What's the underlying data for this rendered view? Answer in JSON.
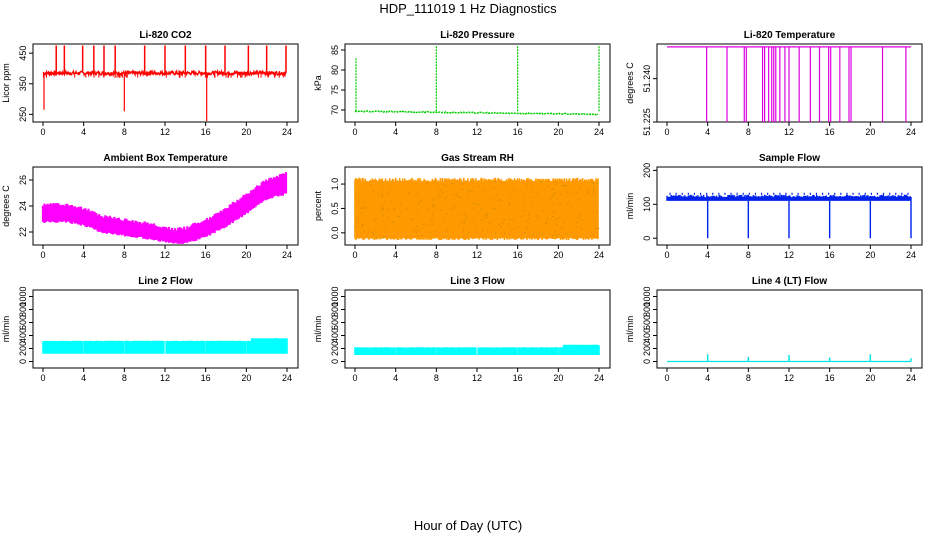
{
  "header": {
    "title": "HDP_111019  1 Hz Diagnostics"
  },
  "footer": {
    "xlabel": "Hour of Day (UTC)"
  },
  "colors": {
    "co2": "#ff0000",
    "pressure": "#00cc00",
    "temperature": "#dd00dd",
    "ambient": "#ff00ff",
    "rh_fill": "#ff9900",
    "rh_mark": "#cc8800",
    "sample": "#0022ee",
    "line2": "#00ffff",
    "line3": "#00ffff",
    "line4": "#00e5e5"
  },
  "chart_data": [
    {
      "type": "line",
      "title": "Li-820 CO2",
      "ylabel": "Licor ppm",
      "x_ticks": [
        0,
        4,
        8,
        12,
        16,
        20,
        24
      ],
      "y_ticks": [
        250,
        350,
        450
      ],
      "xlim": [
        0,
        24
      ],
      "ylim": [
        225,
        480
      ],
      "baseline": 385,
      "color_key": "co2",
      "spikes_up": [
        1.3,
        2.1,
        3.9,
        5.0,
        6.0,
        7.1,
        10.0,
        12.0,
        14.0,
        16.0,
        17.9,
        20.2,
        22.0,
        23.9
      ],
      "dips": [
        {
          "x": 0.1,
          "y": 265
        },
        {
          "x": 8.0,
          "y": 260
        },
        {
          "x": 16.1,
          "y": 228
        }
      ]
    },
    {
      "type": "line",
      "title": "Li-820 Pressure",
      "ylabel": "kPa",
      "x_ticks": [
        0,
        4,
        8,
        12,
        16,
        20,
        24
      ],
      "y_ticks": [
        70,
        75,
        80,
        85
      ],
      "xlim": [
        0,
        24
      ],
      "ylim": [
        67,
        86.5
      ],
      "start": 69.7,
      "end": 68.9,
      "color_key": "pressure",
      "spikes_up": [
        {
          "x": 0.1,
          "y": 83
        },
        {
          "x": 8.0,
          "y": 86
        },
        {
          "x": 16.0,
          "y": 86
        },
        {
          "x": 24.0,
          "y": 86
        }
      ]
    },
    {
      "type": "line",
      "title": "Li-820 Temperature",
      "ylabel": "degrees C",
      "x_ticks": [
        0,
        4,
        8,
        12,
        16,
        20,
        24
      ],
      "y_ticks": [
        51.225,
        51.24
      ],
      "y_tick_labels": [
        "51.225",
        "51.240"
      ],
      "xlim": [
        0,
        24
      ],
      "ylim": [
        51.225,
        51.252
      ],
      "baseline": 51.251,
      "color_key": "temperature",
      "dips": [
        3.9,
        5.9,
        7.6,
        7.8,
        9.4,
        9.6,
        10.0,
        10.3,
        10.5,
        10.7,
        11.1,
        11.6,
        12.0,
        13.0,
        14.1,
        15.0,
        15.9,
        16.1,
        17.0,
        17.9,
        18.1,
        21.2,
        23.5
      ]
    },
    {
      "type": "area",
      "title": "Ambient Box Temperature",
      "ylabel": "degrees C",
      "x_ticks": [
        0,
        4,
        8,
        12,
        16,
        20,
        24
      ],
      "y_ticks": [
        22,
        24,
        26
      ],
      "xlim": [
        0,
        24
      ],
      "ylim": [
        21,
        27
      ],
      "x": [
        0,
        2,
        4,
        6,
        8,
        10,
        12,
        13,
        14,
        16,
        18,
        20,
        22,
        23.9
      ],
      "low": [
        22.8,
        22.9,
        22.6,
        22.0,
        21.8,
        21.6,
        21.3,
        21.2,
        21.2,
        21.7,
        22.5,
        23.5,
        24.6,
        25.0
      ],
      "high": [
        24.0,
        24.0,
        23.7,
        23.1,
        22.8,
        22.6,
        22.2,
        22.1,
        22.2,
        22.8,
        23.7,
        24.8,
        25.9,
        26.4
      ],
      "color_key": "ambient"
    },
    {
      "type": "area",
      "title": "Gas Stream RH",
      "ylabel": "percent",
      "x_ticks": [
        0,
        4,
        8,
        12,
        16,
        20,
        24
      ],
      "y_ticks": [
        0.0,
        0.5,
        1.0
      ],
      "y_tick_labels": [
        "0.0",
        "0.5",
        "1.0"
      ],
      "xlim": [
        0,
        24
      ],
      "ylim": [
        -0.25,
        1.35
      ],
      "low": -0.1,
      "high": 1.05,
      "color_key": "rh_fill"
    },
    {
      "type": "line",
      "title": "Sample Flow",
      "ylabel": "ml/min",
      "x_ticks": [
        0,
        4,
        8,
        12,
        16,
        20,
        24
      ],
      "y_ticks": [
        0,
        100,
        200
      ],
      "xlim": [
        0,
        24
      ],
      "ylim": [
        -20,
        210
      ],
      "low": 110,
      "high": 128,
      "dips": [
        4.0,
        8.0,
        12.0,
        16.0,
        20.0,
        24.0
      ],
      "dip_value": 0,
      "color_key": "sample"
    },
    {
      "type": "area",
      "title": "Line 2 Flow",
      "ylabel": "ml/min",
      "x_ticks": [
        0,
        4,
        8,
        12,
        16,
        20,
        24
      ],
      "y_ticks": [
        0,
        200,
        400,
        600,
        800,
        1000
      ],
      "xlim": [
        0,
        24
      ],
      "ylim": [
        -100,
        1100
      ],
      "low": 120,
      "high": 320,
      "high_late": 360,
      "late_from": 20.5,
      "gaps": [
        4.0,
        8.0,
        12.0,
        16.0,
        20.0
      ],
      "color_key": "line2"
    },
    {
      "type": "area",
      "title": "Line 3 Flow",
      "ylabel": "ml/min",
      "x_ticks": [
        0,
        4,
        8,
        12,
        16,
        20,
        24
      ],
      "y_ticks": [
        0,
        200,
        400,
        600,
        800,
        1000
      ],
      "xlim": [
        0,
        24
      ],
      "ylim": [
        -100,
        1100
      ],
      "low": 100,
      "high": 220,
      "high_late": 260,
      "late_from": 20.5,
      "gaps": [
        4.0,
        8.0,
        12.0,
        16.0,
        20.0
      ],
      "color_key": "line3"
    },
    {
      "type": "line",
      "title": "Line 4 (LT) Flow",
      "ylabel": "ml/min",
      "x_ticks": [
        0,
        4,
        8,
        12,
        16,
        20,
        24
      ],
      "y_ticks": [
        0,
        200,
        400,
        600,
        800,
        1000
      ],
      "xlim": [
        0,
        24
      ],
      "ylim": [
        -100,
        1100
      ],
      "baseline": 0,
      "spikes_up": [
        {
          "x": 4.0,
          "y": 110
        },
        {
          "x": 8.0,
          "y": 70
        },
        {
          "x": 12.0,
          "y": 100
        },
        {
          "x": 16.0,
          "y": 60
        },
        {
          "x": 20.0,
          "y": 110
        },
        {
          "x": 24.0,
          "y": 50
        }
      ],
      "color_key": "line4"
    }
  ]
}
